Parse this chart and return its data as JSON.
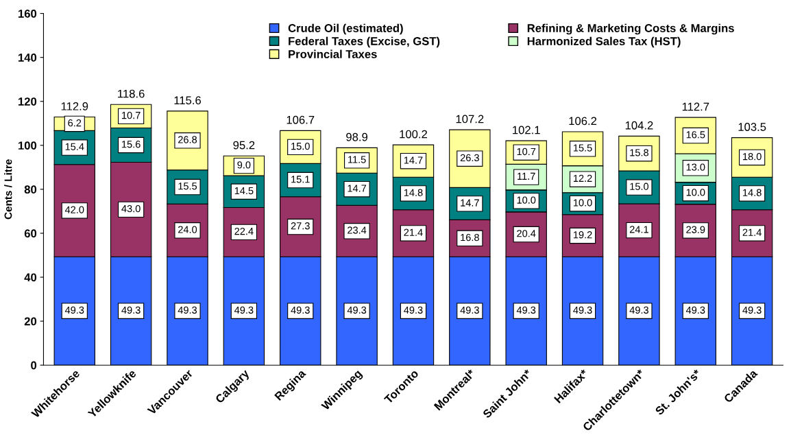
{
  "chart_data": {
    "type": "bar",
    "stacked": true,
    "ylabel": "Cents / Litre",
    "categories": [
      "Whitehorse",
      "Yellowknife",
      "Vancouver",
      "Calgary",
      "Regina",
      "Winnipeg",
      "Toronto",
      "Montreal*",
      "Saint John*",
      "Halifax*",
      "Charlottetown*",
      "St. John's*",
      "Canada"
    ],
    "series": [
      {
        "name": "Crude Oil (estimated)",
        "color": "#3366ff",
        "values": [
          49.3,
          49.3,
          49.3,
          49.3,
          49.3,
          49.3,
          49.3,
          49.3,
          49.3,
          49.3,
          49.3,
          49.3,
          49.3
        ],
        "value_labels": [
          "49.3",
          "49.3",
          "49.3",
          "49.3",
          "49.3",
          "49.3",
          "49.3",
          "49.3",
          "49.3",
          "49.3",
          "49.3",
          "49.3",
          "49.3"
        ]
      },
      {
        "name": "Refining & Marketing Costs & Margins",
        "color": "#993366",
        "values": [
          42.0,
          43.0,
          24.0,
          22.4,
          27.3,
          23.4,
          21.4,
          16.8,
          20.4,
          19.2,
          24.1,
          23.9,
          21.4
        ],
        "value_labels": [
          "42.0",
          "43.0",
          "24.0",
          "22.4",
          "27.3",
          "23.4",
          "21.4",
          "16.8",
          "20.4",
          "19.2",
          "24.1",
          "23.9",
          "21.4"
        ]
      },
      {
        "name": "Federal Taxes (Excise, GST)",
        "color": "#008080",
        "values": [
          15.4,
          15.6,
          15.5,
          14.5,
          15.1,
          14.7,
          14.8,
          14.7,
          10.0,
          10.0,
          15.0,
          10.0,
          14.8
        ],
        "value_labels": [
          "15.4",
          "15.6",
          "15.5",
          "14.5",
          "15.1",
          "14.7",
          "14.8",
          "14.7",
          "10.0",
          "10.0",
          "15.0",
          "10.0",
          "14.8"
        ]
      },
      {
        "name": "Harmonized Sales Tax (HST)",
        "color": "#ccffcc",
        "values": [
          null,
          null,
          null,
          null,
          null,
          null,
          null,
          null,
          11.7,
          12.2,
          null,
          13.0,
          null
        ],
        "value_labels": [
          null,
          null,
          null,
          null,
          null,
          null,
          null,
          null,
          "11.7",
          "12.2",
          null,
          "13.0",
          null
        ]
      },
      {
        "name": "Provincial Taxes",
        "color": "#ffff99",
        "values": [
          6.2,
          10.7,
          26.8,
          9.0,
          15.0,
          11.5,
          14.7,
          26.3,
          10.7,
          15.5,
          15.8,
          16.5,
          18.0
        ],
        "value_labels": [
          "6.2",
          "10.7",
          "26.8",
          "9.0",
          "15.0",
          "11.5",
          "14.7",
          "26.3",
          "10.7",
          "15.5",
          "15.8",
          "16.5",
          "18.0"
        ]
      }
    ],
    "totals": [
      "112.9",
      "118.6",
      "115.6",
      "95.2",
      "106.7",
      "98.9",
      "100.2",
      "107.2",
      "102.1",
      "106.2",
      "104.2",
      "112.7",
      "103.5"
    ],
    "ylim": [
      0,
      160
    ],
    "yticks": [
      0,
      20,
      40,
      60,
      80,
      100,
      120,
      140,
      160
    ],
    "legend": "top",
    "grid": false
  }
}
